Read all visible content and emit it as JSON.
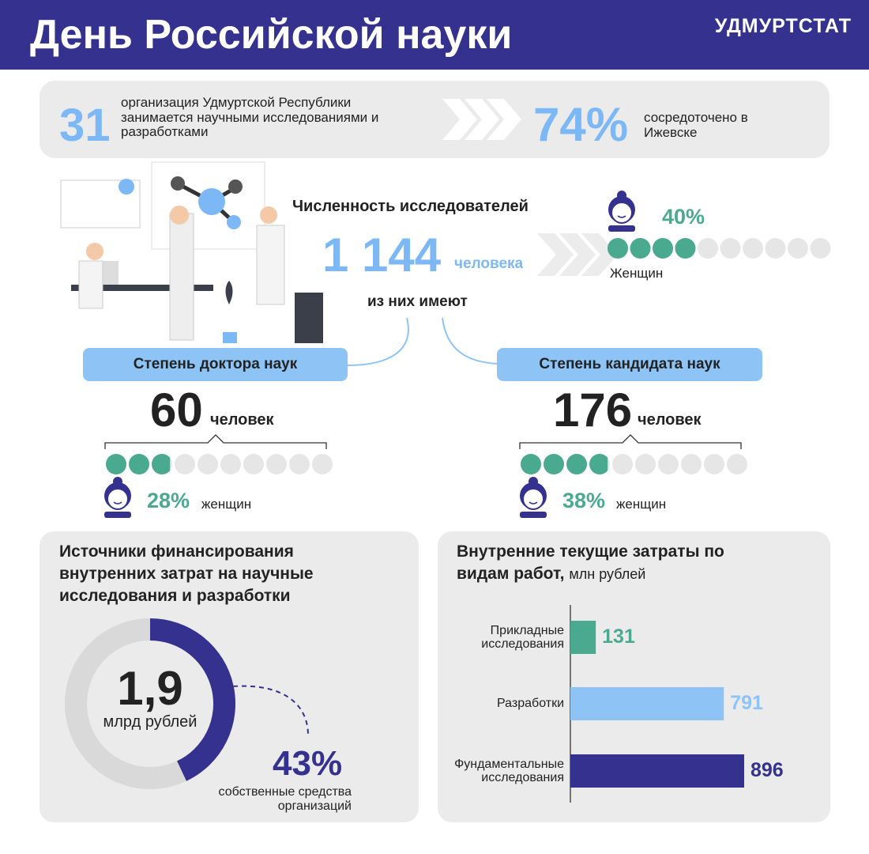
{
  "header": {
    "title": "День Российской науки",
    "brand": "УДМУРТСТАТ"
  },
  "summary": {
    "organizations": "31",
    "organizations_text": "организация Удмуртской Республики занимается научными исследованиями и разработками",
    "izhevsk_share": "74%",
    "izhevsk_text": "сосредоточено в Ижевске"
  },
  "researchers": {
    "title": "Численность исследователей",
    "count": "1 144",
    "unit": "человека",
    "subtitle": "из них имеют",
    "women": {
      "value": 40,
      "label": "40%"
    },
    "women_label": "Женщин"
  },
  "degrees": [
    {
      "title": "Степень доктора наук",
      "count": "60",
      "unit": "человек",
      "women": {
        "value": 28,
        "label": "28%"
      },
      "women_label": "женщин"
    },
    {
      "title": "Степень кандидата наук",
      "count": "176",
      "unit": "человек",
      "women": {
        "value": 38,
        "label": "38%"
      },
      "women_label": "женщин"
    }
  ],
  "funding": {
    "title": "Источники финансирования внутренних затрат на научные исследования и разработки",
    "total": "1,9",
    "total_unit": "млрд рублей",
    "share": {
      "value": 43,
      "label": "43%"
    },
    "share_label": "собственные средства организаций"
  },
  "costs": {
    "title": "Внутренние текущие затраты по видам работ,",
    "unit": "млн рублей",
    "categories": [
      "Прикладные исследования",
      "Разработки",
      "Фундаментальные исследования"
    ],
    "values": [
      131,
      791,
      896
    ],
    "colors": [
      "#4aaa8f",
      "#8dc4f5",
      "#34318f"
    ]
  }
}
